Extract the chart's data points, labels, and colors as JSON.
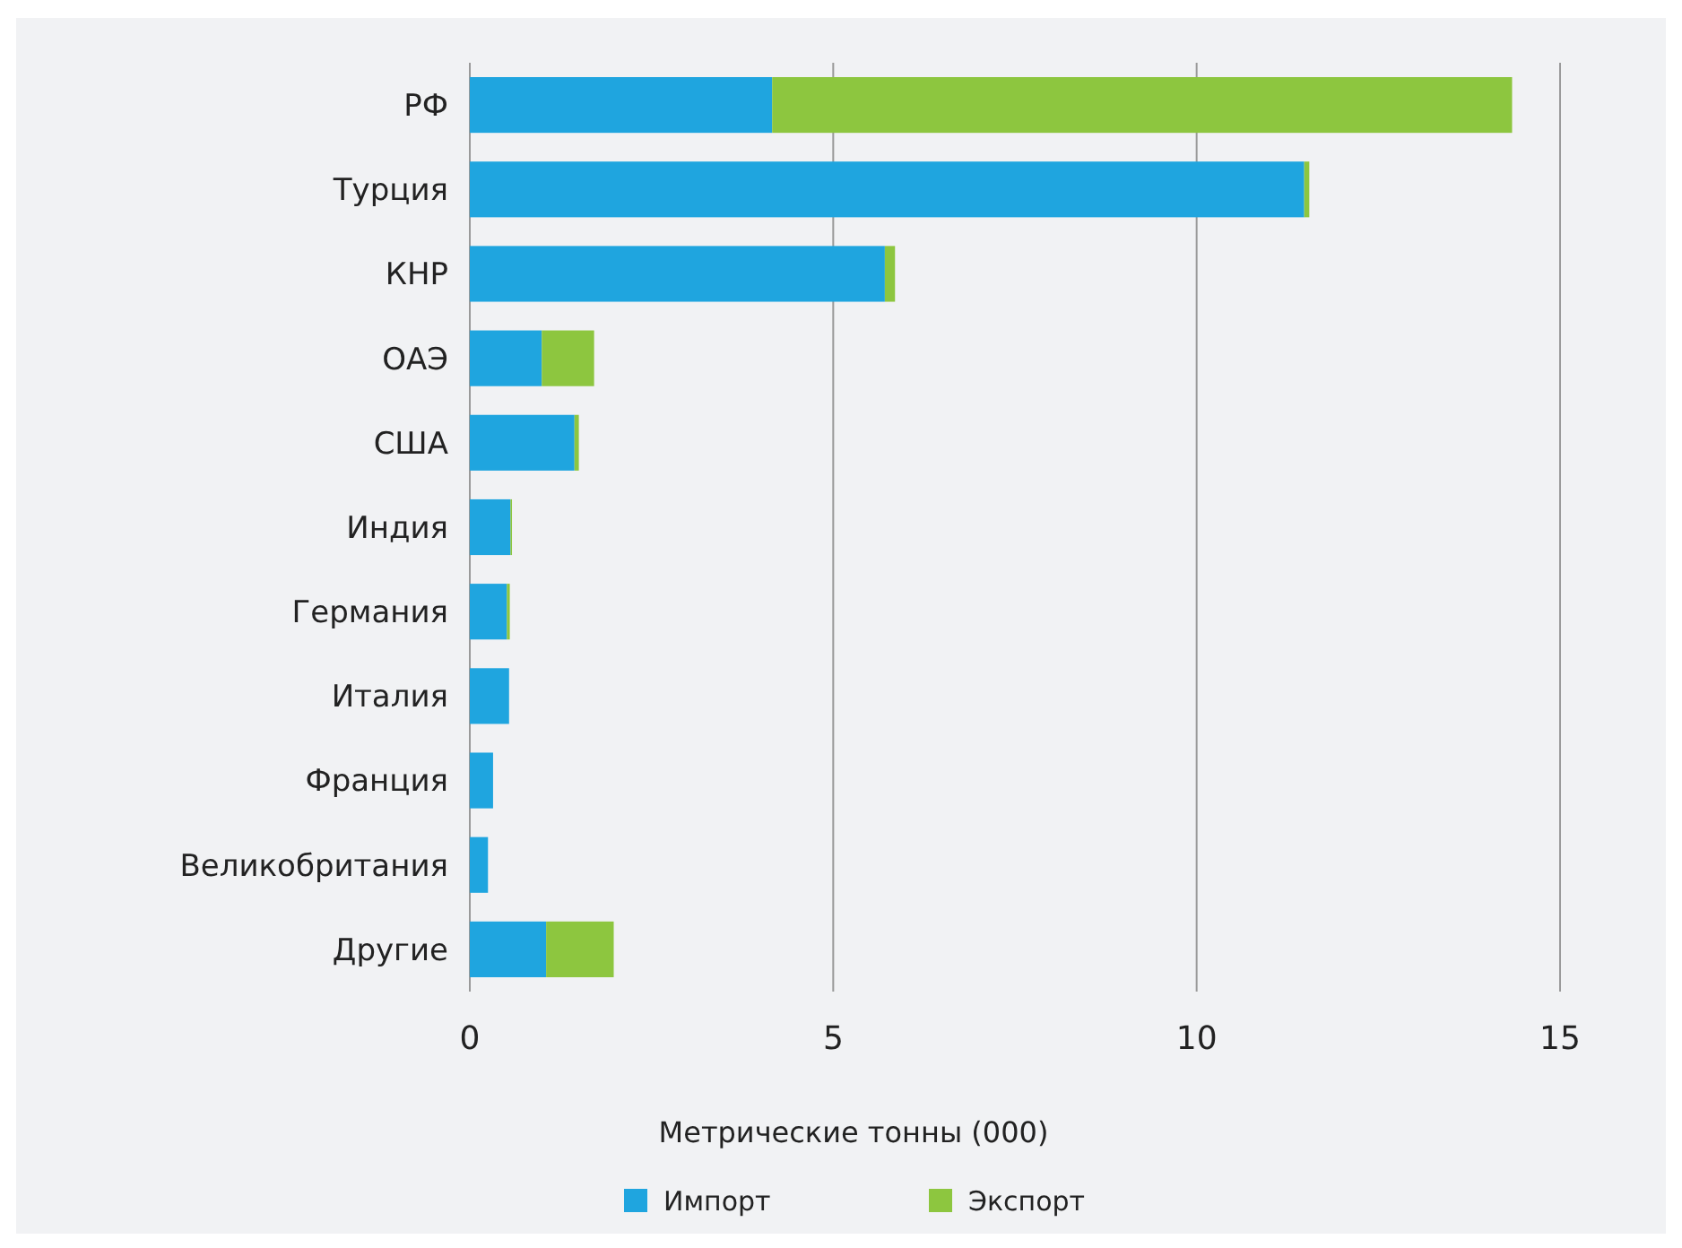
{
  "chart_data": {
    "type": "bar",
    "orientation": "horizontal",
    "stacked": true,
    "categories": [
      "РФ",
      "Турция",
      "КНР",
      "ОАЭ",
      "США",
      "Индия",
      "Германия",
      "Италия",
      "Франция",
      "Великобритания",
      "Другие"
    ],
    "series": [
      {
        "name": "Импорт",
        "color": "#1fa5df",
        "values": [
          4.16,
          11.48,
          5.71,
          0.99,
          1.44,
          0.56,
          0.51,
          0.54,
          0.32,
          0.25,
          1.05
        ]
      },
      {
        "name": "Экспорт",
        "color": "#8dc63f",
        "values": [
          10.18,
          0.07,
          0.14,
          0.72,
          0.06,
          0.02,
          0.04,
          0,
          0,
          0,
          0.93
        ]
      }
    ],
    "xlabel": "Метрические тонны (000)",
    "xlim": [
      0,
      15
    ],
    "xticks": [
      0,
      5,
      10,
      15
    ],
    "grid": "x",
    "legend": "bottom"
  }
}
